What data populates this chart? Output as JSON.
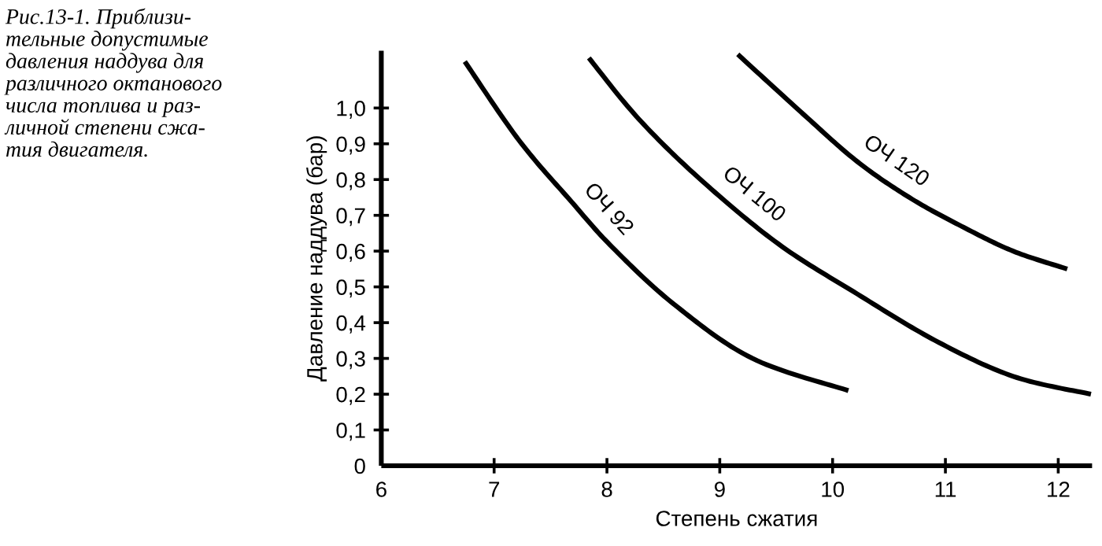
{
  "chart_data": {
    "type": "line",
    "xlabel": "Степень сжатия",
    "ylabel": "Давление наддува (бар)",
    "annotations": [
      "Рис.13-1. Приблизи-\nтельные допустимые\nдавления наддува для\nразличного октанового\nчисла топлива и раз-\nличной степени сжа-\nтия двигателя."
    ],
    "series": [
      {
        "name": "ОЧ 92",
        "color": "#000000",
        "x": [
          6.74,
          7.22,
          7.68,
          8.05,
          8.6,
          9.29,
          10.14
        ],
        "values": [
          1.13,
          0.91,
          0.74,
          0.61,
          0.45,
          0.3,
          0.21
        ]
      },
      {
        "name": "ОЧ 100",
        "color": "#000000",
        "x": [
          7.84,
          8.28,
          8.83,
          9.52,
          10.22,
          10.91,
          11.6,
          12.29
        ],
        "values": [
          1.14,
          0.97,
          0.8,
          0.62,
          0.48,
          0.35,
          0.25,
          0.2
        ]
      },
      {
        "name": "ОЧ 120",
        "color": "#000000",
        "x": [
          9.16,
          9.75,
          10.22,
          10.68,
          11.14,
          11.6,
          12.08
        ],
        "values": [
          1.15,
          0.98,
          0.85,
          0.75,
          0.67,
          0.6,
          0.55
        ]
      }
    ],
    "xlim": [
      6,
      12.3
    ],
    "xticks": [
      6,
      7,
      8,
      9,
      10,
      11,
      12
    ],
    "ylim": [
      0,
      1.16
    ],
    "yticks": [
      0,
      {
        "value": 0.1,
        "label": "0,1"
      },
      {
        "value": 0.2,
        "label": "0,2"
      },
      {
        "value": 0.3,
        "label": "0,3"
      },
      {
        "value": 0.4,
        "label": "0,4"
      },
      {
        "value": 0.5,
        "label": "0,5"
      },
      {
        "value": 0.6,
        "label": "0,6"
      },
      {
        "value": 0.7,
        "label": "0,7"
      },
      {
        "value": 0.8,
        "label": "0,8"
      },
      {
        "value": 0.9,
        "label": "0,9"
      },
      {
        "value": 1.0,
        "label": "1,0"
      }
    ],
    "grid": false,
    "legend": false,
    "marker": "none",
    "line_style": "solid"
  }
}
